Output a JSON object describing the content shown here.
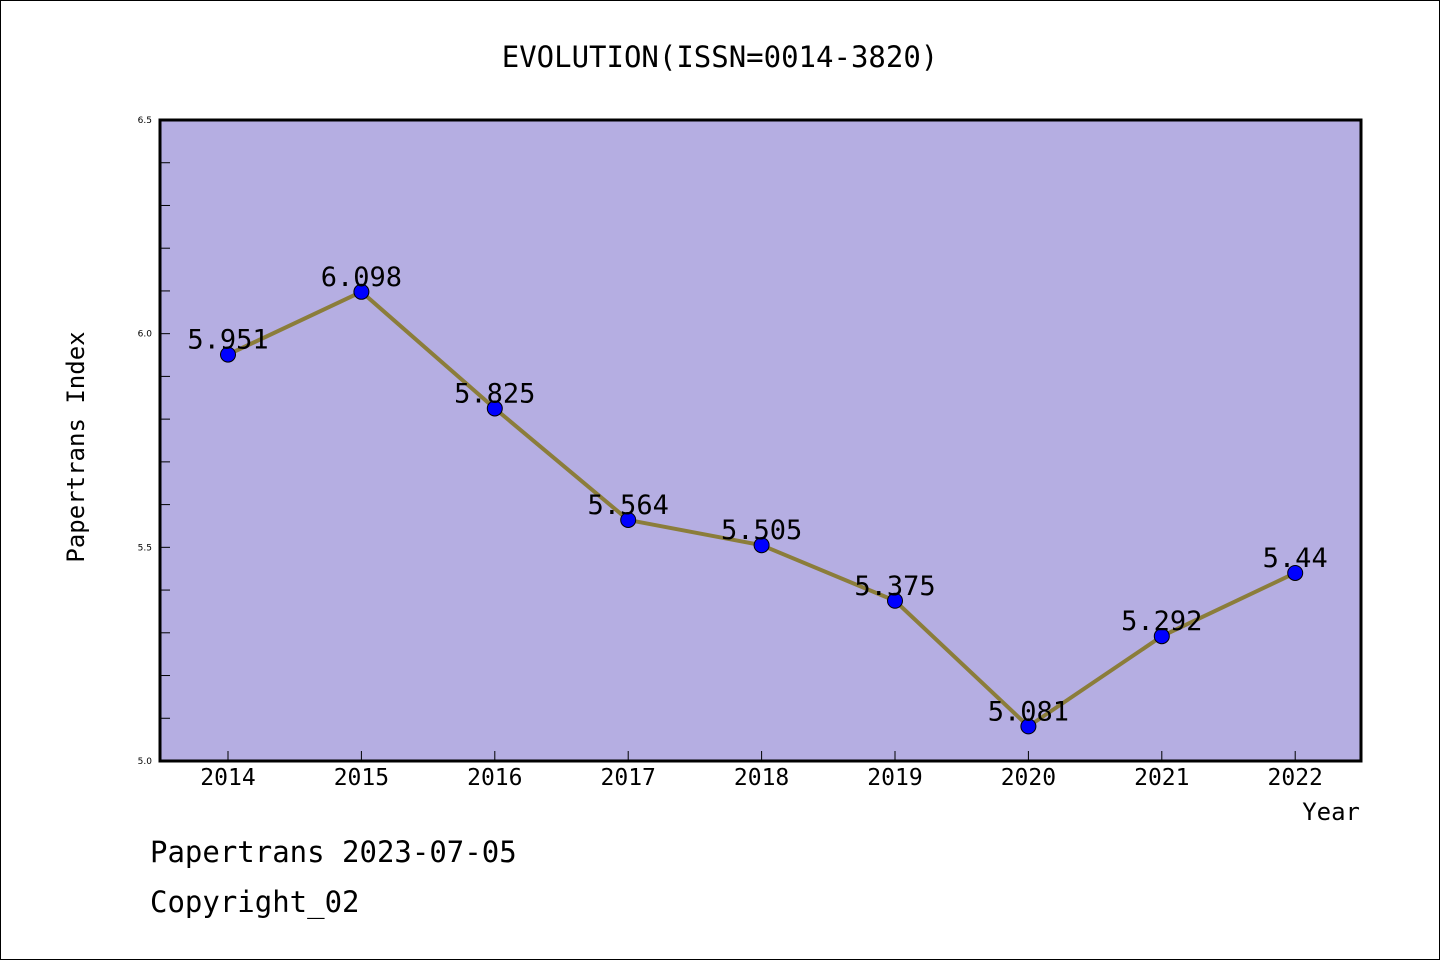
{
  "chart_data": {
    "type": "line",
    "title": "EVOLUTION(ISSN=0014-3820)",
    "xlabel": "Year",
    "ylabel": "Papertrans Index",
    "categories": [
      "2014",
      "2015",
      "2016",
      "2017",
      "2018",
      "2019",
      "2020",
      "2021",
      "2022"
    ],
    "series": [
      {
        "values": [
          5.951,
          6.098,
          5.825,
          5.564,
          5.505,
          5.375,
          5.081,
          5.292,
          5.44
        ],
        "labels": [
          "5.951",
          "6.098",
          "5.825",
          "5.564",
          "5.505",
          "5.375",
          "5.081",
          "5.292",
          "5.44"
        ]
      }
    ],
    "ylim": [
      5.0,
      6.5
    ],
    "yticks": [
      "5.0",
      "5.5",
      "6.0",
      "6.5"
    ],
    "grid": false,
    "colors": {
      "plot_background": "#b5aee2",
      "line": "#8b7d3a",
      "marker": "#0000ff"
    }
  },
  "footer": {
    "line1": "Papertrans 2023-07-05",
    "line2": "Copyright_02"
  }
}
